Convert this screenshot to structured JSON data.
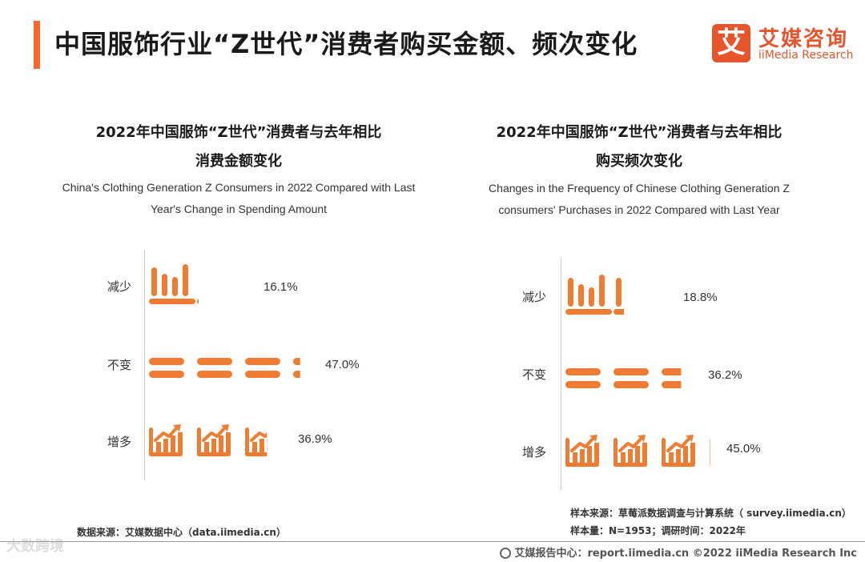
{
  "header": {
    "title": "中国服饰行业“Z世代”消费者购买金额、频次变化",
    "logo_mark": "艾",
    "logo_cn": "艾媒咨询",
    "logo_en": "iiMedia Research"
  },
  "chart_data": [
    {
      "type": "bar",
      "title": "2022年中国服饰“Z世代”消费者与去年相比",
      "title_line2": "消费金额变化",
      "subtitle": "China's Clothing Generation Z Consumers in 2022 Compared with Last",
      "subtitle_line2": "Year's Change in Spending Amount",
      "categories": [
        "减少",
        "不变",
        "增多"
      ],
      "values": [
        16.1,
        47.0,
        36.9
      ],
      "value_labels": [
        "16.1%",
        "47.0%",
        "36.9%"
      ],
      "orientation": "horizontal",
      "icons": [
        "bar-chart-decrease-icon",
        "equal-sign-icon",
        "bar-chart-increase-icon"
      ],
      "xlim": [
        0,
        50
      ]
    },
    {
      "type": "bar",
      "title": "2022年中国服饰“Z世代”消费者与去年相比",
      "title_line2": "购买频次变化",
      "subtitle": "Changes in the Frequency of Chinese Clothing Generation Z",
      "subtitle_line2": "consumers' Purchases in 2022 Compared with Last Year",
      "categories": [
        "减少",
        "不变",
        "增多"
      ],
      "values": [
        18.8,
        36.2,
        45.0
      ],
      "value_labels": [
        "18.8%",
        "36.2%",
        "45.0%"
      ],
      "orientation": "horizontal",
      "icons": [
        "bar-chart-decrease-icon",
        "equal-sign-icon",
        "bar-chart-increase-icon"
      ],
      "xlim": [
        0,
        50
      ]
    }
  ],
  "colors": {
    "accent": "#f26b2b",
    "bars": "#ee7d33"
  },
  "notes": {
    "source_left": "数据来源：艾媒数据中心（data.iimedia.cn）",
    "sample_source": "样本来源：草莓派数据调查与计算系统（ survey.iimedia.cn）",
    "sample_size": "样本量：N=1953；调研时间：2022年"
  },
  "footer": {
    "text": "艾媒报告中心：report.iimedia.cn  ©2022  iiMedia Research  Inc",
    "icon": "globe-icon",
    "watermark": "大数跨境"
  }
}
